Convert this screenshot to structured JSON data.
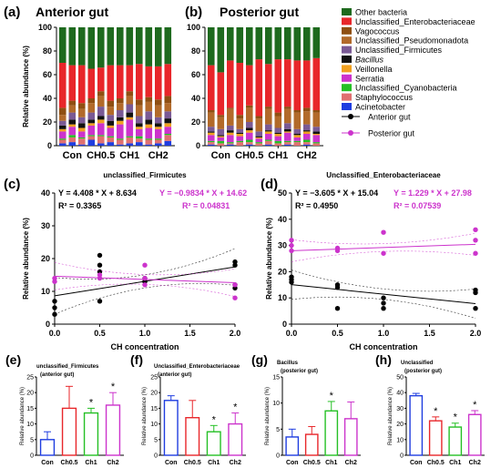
{
  "chart_data": [
    {
      "id": "a",
      "type": "bar",
      "stacked": true,
      "panel_label": "(a)",
      "title": "Anterior gut",
      "ylabel": "Relative abundance (%)",
      "ylim": [
        0,
        100
      ],
      "yticks": [
        0,
        20,
        40,
        60,
        80,
        100
      ],
      "groups": [
        "Con",
        "CH0.5",
        "CH1",
        "CH2"
      ],
      "samples_per_group": 3,
      "taxa_bottom_to_top": [
        "Acinetobacter",
        "Staphylococcus",
        "Unclassified_Cyanobacteria",
        "Serratia",
        "Veillonella",
        "Bacillus",
        "Unclassified_Firmicutes",
        "Unclassified_Pseudomonadota",
        "Vagococcus",
        "Unclassified_Enterobacteriaceae",
        "Other bacteria"
      ],
      "samples": [
        [
          2,
          3,
          1,
          6,
          2,
          3,
          4,
          5,
          6,
          38,
          30
        ],
        [
          3,
          4,
          2,
          7,
          2,
          4,
          6,
          6,
          4,
          30,
          32
        ],
        [
          1,
          5,
          1,
          5,
          3,
          4,
          5,
          7,
          5,
          32,
          32
        ],
        [
          5,
          3,
          1,
          8,
          2,
          3,
          6,
          8,
          4,
          25,
          35
        ],
        [
          2,
          6,
          1,
          10,
          3,
          3,
          8,
          9,
          4,
          20,
          34
        ],
        [
          3,
          4,
          1,
          7,
          2,
          4,
          5,
          7,
          5,
          30,
          32
        ],
        [
          1,
          4,
          1,
          12,
          3,
          3,
          6,
          6,
          4,
          28,
          32
        ],
        [
          2,
          5,
          1,
          14,
          2,
          4,
          7,
          7,
          4,
          22,
          32
        ],
        [
          3,
          3,
          2,
          6,
          2,
          3,
          6,
          9,
          5,
          30,
          31
        ],
        [
          1,
          4,
          1,
          9,
          3,
          4,
          7,
          8,
          4,
          26,
          33
        ],
        [
          2,
          3,
          1,
          8,
          2,
          3,
          5,
          10,
          5,
          28,
          33
        ],
        [
          4,
          5,
          1,
          6,
          3,
          4,
          6,
          7,
          6,
          27,
          31
        ]
      ]
    },
    {
      "id": "b",
      "type": "bar",
      "stacked": true,
      "panel_label": "(b)",
      "title": "Posterior gut",
      "ylim": [
        0,
        100
      ],
      "yticks": [
        0,
        20,
        40,
        60,
        80,
        100
      ],
      "groups": [
        "Con",
        "CH0.5",
        "CH1",
        "CH2"
      ],
      "samples_per_group": 3,
      "samples": [
        [
          1,
          2,
          1,
          5,
          2,
          1,
          4,
          12,
          2,
          38,
          32
        ],
        [
          0,
          2,
          2,
          3,
          1,
          1,
          5,
          10,
          2,
          36,
          38
        ],
        [
          1,
          1,
          1,
          6,
          2,
          2,
          4,
          14,
          1,
          40,
          28
        ],
        [
          0,
          3,
          1,
          4,
          2,
          1,
          3,
          9,
          3,
          44,
          30
        ],
        [
          1,
          2,
          2,
          6,
          2,
          2,
          5,
          12,
          2,
          34,
          32
        ],
        [
          0,
          2,
          1,
          3,
          1,
          1,
          4,
          11,
          2,
          48,
          27
        ],
        [
          1,
          3,
          1,
          5,
          2,
          1,
          5,
          13,
          2,
          36,
          31
        ],
        [
          0,
          2,
          2,
          4,
          2,
          1,
          4,
          10,
          3,
          45,
          27
        ],
        [
          1,
          2,
          1,
          7,
          1,
          2,
          5,
          12,
          2,
          40,
          27
        ],
        [
          0,
          3,
          1,
          3,
          2,
          1,
          4,
          14,
          2,
          42,
          28
        ],
        [
          1,
          2,
          2,
          5,
          2,
          1,
          5,
          11,
          3,
          40,
          28
        ],
        [
          0,
          2,
          1,
          6,
          1,
          2,
          4,
          12,
          2,
          44,
          26
        ]
      ]
    },
    {
      "id": "legend",
      "type": "legend",
      "entries": [
        {
          "name": "Other bacteria",
          "color": "#1e6a1e"
        },
        {
          "name": "Unclassified_Enterobacteriaceae",
          "color": "#e8262a"
        },
        {
          "name": "Vagococcus",
          "color": "#8f4f12"
        },
        {
          "name": "Unclassified_Pseudomonadota",
          "color": "#b26a2a"
        },
        {
          "name": "Unclassified_Firmicutes",
          "color": "#7a5a95"
        },
        {
          "name": "Bacillus",
          "color": "#111111",
          "italic": true
        },
        {
          "name": "Veillonella",
          "color": "#f0a020"
        },
        {
          "name": "Serratia",
          "color": "#cc33cc"
        },
        {
          "name": "Unclassified_Cyanobacteria",
          "color": "#25c025"
        },
        {
          "name": "Staphylococcus",
          "color": "#e07070"
        },
        {
          "name": "Acinetobacter",
          "color": "#1f3de0"
        }
      ],
      "series_entries": [
        {
          "name": "Anterior gut",
          "color": "#000000"
        },
        {
          "name": "Posterior gut",
          "color": "#cc33cc"
        }
      ]
    },
    {
      "id": "c",
      "type": "scatter",
      "panel_label": "(c)",
      "title": "unclassified_Firmicutes",
      "xlabel": "CH concentration",
      "ylabel": "Relative abundance (%)",
      "xlim": [
        0,
        2
      ],
      "ylim": [
        0,
        40
      ],
      "xticks": [
        0.0,
        0.5,
        1.0,
        1.5,
        2.0
      ],
      "xtick_labels": [
        "0.0",
        "0.5",
        "1.0",
        "1.5",
        "2.0"
      ],
      "yticks": [
        0,
        10,
        20,
        30,
        40
      ],
      "series": [
        {
          "name": "Anterior gut",
          "color": "#000000",
          "points": [
            [
              0,
              3
            ],
            [
              0,
              5
            ],
            [
              0,
              7
            ],
            [
              0.5,
              7
            ],
            [
              0.5,
              16
            ],
            [
              0.5,
              18
            ],
            [
              0.5,
              21
            ],
            [
              1,
              13
            ],
            [
              1,
              13
            ],
            [
              1,
              14
            ],
            [
              2,
              11
            ],
            [
              2,
              12
            ],
            [
              2,
              18
            ],
            [
              2,
              19
            ]
          ],
          "fit": {
            "slope": 4.408,
            "intercept": 8.634
          },
          "equation": "Y = 4.408 * X + 8.634",
          "r2": "R² = 0.3365"
        },
        {
          "name": "Posterior gut",
          "color": "#cc33cc",
          "points": [
            [
              0,
              13
            ],
            [
              0,
              14
            ],
            [
              0.5,
              14
            ],
            [
              0.5,
              15
            ],
            [
              1,
              12
            ],
            [
              1,
              14
            ],
            [
              1,
              18
            ],
            [
              2,
              8
            ],
            [
              2,
              12
            ]
          ],
          "fit": {
            "slope": -0.9834,
            "intercept": 14.62
          },
          "equation": "Y = −0.9834 * X + 14.62",
          "r2": "R² = 0.04831"
        }
      ]
    },
    {
      "id": "d",
      "type": "scatter",
      "panel_label": "(d)",
      "title": "Unclassified_Enterobacteriaceae",
      "xlabel": "CH concentration",
      "ylabel": "Relative abundance (%)",
      "xlim": [
        0,
        2
      ],
      "ylim": [
        0,
        50
      ],
      "xticks": [
        0.0,
        0.5,
        1.0,
        1.5,
        2.0
      ],
      "xtick_labels": [
        "0.0",
        "0.5",
        "1.0",
        "1.5",
        "2.0"
      ],
      "yticks": [
        0,
        10,
        20,
        30,
        40,
        50
      ],
      "series": [
        {
          "name": "Anterior gut",
          "color": "#000000",
          "points": [
            [
              0,
              16
            ],
            [
              0,
              18
            ],
            [
              0,
              17
            ],
            [
              0.5,
              6
            ],
            [
              0.5,
              14
            ],
            [
              0.5,
              15
            ],
            [
              1,
              6
            ],
            [
              1,
              8
            ],
            [
              1,
              10
            ],
            [
              2,
              6
            ],
            [
              2,
              12
            ],
            [
              2,
              13
            ]
          ],
          "fit": {
            "slope": -3.605,
            "intercept": 15.04
          },
          "equation": "Y = −3.605 * X + 15.04",
          "r2": "R² = 0.4950"
        },
        {
          "name": "Posterior gut",
          "color": "#cc33cc",
          "points": [
            [
              0,
              28
            ],
            [
              0,
              30
            ],
            [
              0,
              32
            ],
            [
              0.5,
              28
            ],
            [
              0.5,
              29
            ],
            [
              1,
              27
            ],
            [
              1,
              35
            ],
            [
              2,
              27
            ],
            [
              2,
              32
            ],
            [
              2,
              36
            ]
          ],
          "fit": {
            "slope": 1.229,
            "intercept": 27.98
          },
          "equation": "Y = 1.229 * X + 27.98",
          "r2": "R² = 0.07539"
        }
      ]
    },
    {
      "id": "e",
      "type": "bar",
      "panel_label": "(e)",
      "title": "unclassified_Firmicutes (anterior gut)",
      "ylabel": "Relative abundance (%)",
      "categories": [
        "Con",
        "Ch0.5",
        "Ch1",
        "Ch2"
      ],
      "values": [
        5,
        15,
        13.5,
        16
      ],
      "errors": [
        2.5,
        7,
        1.5,
        4
      ],
      "significance": [
        "",
        "",
        "*",
        "*"
      ],
      "ylim": [
        0,
        25
      ],
      "yticks": [
        0,
        5,
        10,
        15,
        20,
        25
      ]
    },
    {
      "id": "f",
      "type": "bar",
      "panel_label": "(f)",
      "title": "Unclassified_Enterobacteriaceae (anterior gut)",
      "ylabel": "Relative abundance (%)",
      "categories": [
        "Con",
        "Ch0.5",
        "Ch1",
        "Ch2"
      ],
      "values": [
        17.5,
        12,
        7.5,
        10
      ],
      "errors": [
        1.5,
        5.5,
        2,
        3.5
      ],
      "significance": [
        "",
        "",
        "*",
        "*"
      ],
      "ylim": [
        0,
        25
      ],
      "yticks": [
        0,
        5,
        10,
        15,
        20,
        25
      ]
    },
    {
      "id": "g",
      "type": "bar",
      "panel_label": "(g)",
      "title": "Bacillus (posterior gut)",
      "ylabel": "Relative abundance (%)",
      "categories": [
        "Con",
        "Ch0.5",
        "Ch1",
        "Ch2"
      ],
      "values": [
        3.5,
        4,
        8.5,
        7
      ],
      "errors": [
        1.5,
        1.5,
        1.8,
        3.2
      ],
      "significance": [
        "",
        "",
        "*",
        ""
      ],
      "ylim": [
        0,
        15
      ],
      "yticks": [
        0,
        5,
        10,
        15
      ]
    },
    {
      "id": "h",
      "type": "bar",
      "panel_label": "(h)",
      "title": "Unclassified (posterior gut)",
      "ylabel": "Relative abundance (%)",
      "categories": [
        "Con",
        "Ch0.5",
        "Ch1",
        "Ch2"
      ],
      "values": [
        38,
        22,
        18,
        26
      ],
      "errors": [
        1.5,
        2.5,
        2.5,
        2.5
      ],
      "significance": [
        "",
        "*",
        "*",
        "*"
      ],
      "ylim": [
        0,
        50
      ],
      "yticks": [
        0,
        10,
        20,
        30,
        40,
        50
      ]
    }
  ],
  "colors": {
    "e_f_g_h_bars": [
      "#1f3de0",
      "#e8262a",
      "#25c025",
      "#cc33cc"
    ]
  }
}
